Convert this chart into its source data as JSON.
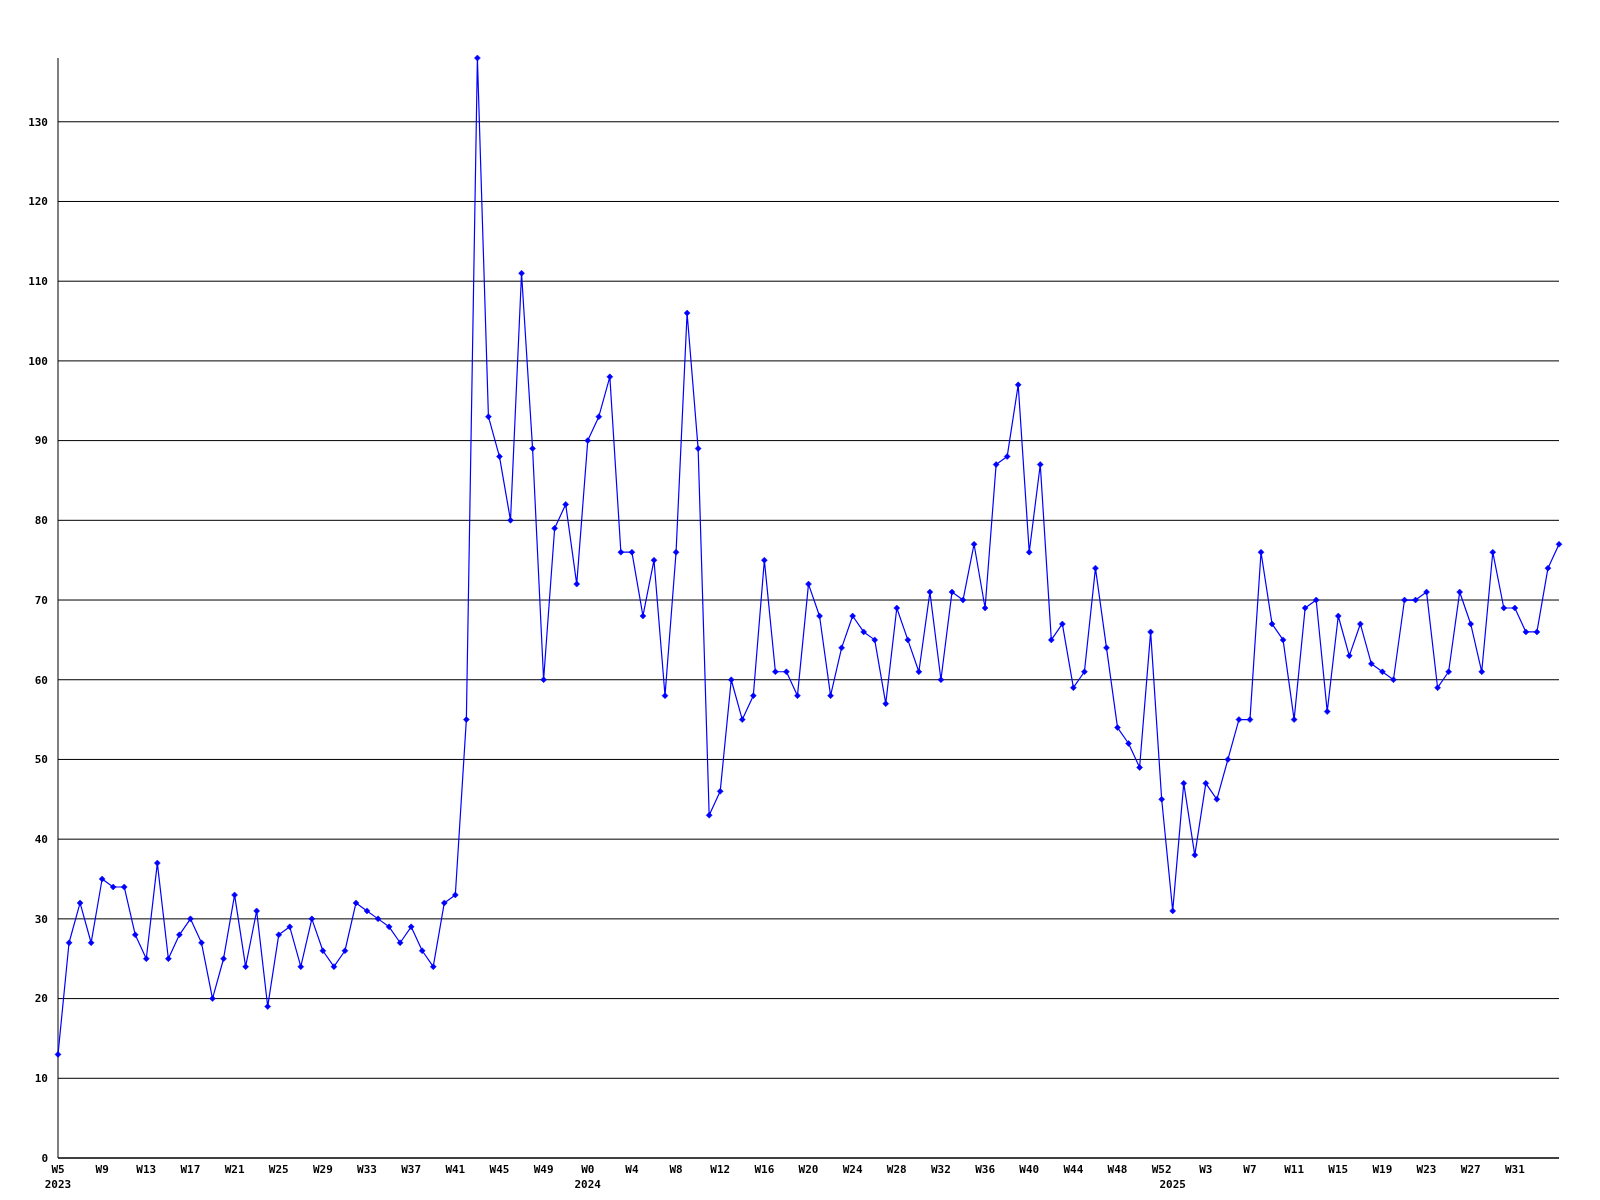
{
  "chart_data": {
    "type": "line",
    "series": [
      {
        "color": "#0000ff",
        "values": [
          13,
          27,
          32,
          27,
          35,
          34,
          34,
          28,
          25,
          37,
          25,
          28,
          30,
          27,
          20,
          25,
          33,
          24,
          31,
          19,
          28,
          29,
          24,
          30,
          26,
          24,
          26,
          32,
          31,
          30,
          29,
          27,
          29,
          26,
          24,
          32,
          33,
          55,
          138,
          93,
          88,
          80,
          111,
          89,
          60,
          79,
          82,
          72,
          90,
          93,
          98,
          76,
          76,
          68,
          75,
          58,
          76,
          106,
          89,
          43,
          46,
          60,
          55,
          58,
          75,
          61,
          61,
          58,
          72,
          68,
          58,
          64,
          68,
          66,
          65,
          57,
          69,
          65,
          61,
          71,
          60,
          71,
          70,
          77,
          69,
          87,
          88,
          97,
          76,
          87,
          65,
          67,
          59,
          61,
          74,
          64,
          54,
          52,
          49,
          66,
          45,
          31,
          47,
          38,
          47,
          45,
          50,
          55,
          55,
          76,
          67,
          65,
          55,
          69,
          70,
          56,
          68,
          63,
          67,
          62,
          61,
          60,
          70,
          70,
          71,
          59,
          61,
          71,
          67,
          61,
          76,
          69,
          69,
          66,
          66,
          74,
          77
        ]
      }
    ],
    "categories": [
      "W5\n2023",
      null,
      null,
      null,
      "W9",
      null,
      null,
      null,
      "W13",
      null,
      null,
      null,
      "W17",
      null,
      null,
      null,
      "W21",
      null,
      null,
      null,
      "W25",
      null,
      null,
      null,
      "W29",
      null,
      null,
      null,
      "W33",
      null,
      null,
      null,
      "W37",
      null,
      null,
      null,
      "W41",
      null,
      null,
      null,
      "W45",
      null,
      null,
      null,
      "W49",
      null,
      null,
      null,
      "W0\n2024",
      null,
      null,
      null,
      "W4",
      null,
      null,
      null,
      "W8",
      null,
      null,
      null,
      "W12",
      null,
      null,
      null,
      "W16",
      null,
      null,
      null,
      "W20",
      null,
      null,
      null,
      "W24",
      null,
      null,
      null,
      "W28",
      null,
      null,
      null,
      "W32",
      null,
      null,
      null,
      "W36",
      null,
      null,
      null,
      "W40",
      null,
      null,
      null,
      "W44",
      null,
      null,
      null,
      "W48",
      null,
      null,
      null,
      "W52",
      "\n2025",
      null,
      null,
      "W3",
      null,
      null,
      null,
      "W7",
      null,
      null,
      null,
      "W11",
      null,
      null,
      null,
      "W15",
      null,
      null,
      null,
      "W19",
      null,
      null,
      null,
      "W23",
      null,
      null,
      null,
      "W27",
      null,
      null,
      null,
      "W31",
      null,
      null,
      null,
      null
    ],
    "ylim": [
      0,
      138
    ],
    "yticks": [
      0,
      10,
      20,
      30,
      40,
      50,
      60,
      70,
      80,
      90,
      100,
      110,
      120,
      130
    ],
    "grid": "y",
    "marker": "diamond",
    "line_style": "solid"
  }
}
